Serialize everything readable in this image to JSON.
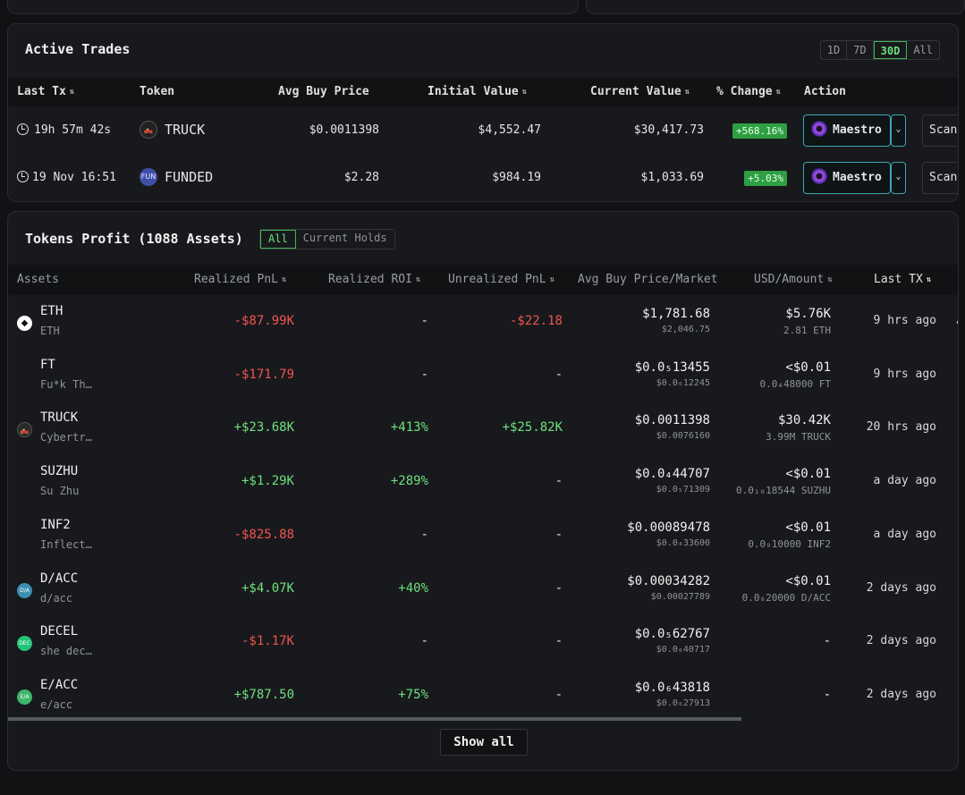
{
  "active_trades": {
    "title": "Active Trades",
    "ranges": [
      "1D",
      "7D",
      "30D",
      "All"
    ],
    "active_range": "30D",
    "columns": [
      "Last Tx",
      "Token",
      "Avg Buy Price",
      "Initial Value",
      "Current Value",
      "% Change",
      "Action"
    ],
    "rows": [
      {
        "last_tx": "19h 57m 42s",
        "token": "TRUCK",
        "avg_buy_price": "$0.0011398",
        "initial_value": "$4,552.47",
        "current_value": "$30,417.73",
        "change": "+568.16%",
        "action": "Maestro",
        "scan": "Scan"
      },
      {
        "last_tx": "19 Nov 16:51",
        "token": "FUNDED",
        "token_icon_text": "FUN",
        "avg_buy_price": "$2.28",
        "initial_value": "$984.19",
        "current_value": "$1,033.69",
        "change": "+5.03%",
        "action": "Maestro",
        "scan": "Scan"
      }
    ]
  },
  "tokens_profit": {
    "title": "Tokens Profit (1088 Assets)",
    "filters": [
      "All",
      "Current Holds"
    ],
    "active_filter": "All",
    "columns": [
      "Assets",
      "Realized PnL",
      "Realized ROI",
      "Unrealized PnL",
      "Avg Buy Price/Market",
      "USD/Amount",
      "Last TX"
    ],
    "rows": [
      {
        "symbol": "ETH",
        "name": "ETH",
        "icon_color": "#ffffff",
        "realized_pnl": "-$87.99K",
        "realized_roi": "-",
        "unrealized_pnl": "-$22.18",
        "avg_buy": "$1,781.68",
        "market": "$2,046.75",
        "usd": "$5.76K",
        "amount": "2.81 ETH",
        "last_tx": "9 hrs ago"
      },
      {
        "symbol": "FT",
        "name": "Fu*k Th…",
        "icon_color": "",
        "realized_pnl": "-$171.79",
        "realized_roi": "-",
        "unrealized_pnl": "-",
        "avg_buy": "$0.0₅13455",
        "market": "$0.0₆12245",
        "usd": "<$0.01",
        "amount": "0.0₄48000 FT",
        "last_tx": "9 hrs ago"
      },
      {
        "symbol": "TRUCK",
        "name": "Cybertr…",
        "icon_color": "#2a2a2a",
        "realized_pnl": "+$23.68K",
        "realized_roi": "+413%",
        "unrealized_pnl": "+$25.82K",
        "avg_buy": "$0.0011398",
        "market": "$0.0076160",
        "usd": "$30.42K",
        "amount": "3.99M TRUCK",
        "last_tx": "20 hrs ago"
      },
      {
        "symbol": "SUZHU",
        "name": "Su Zhu",
        "icon_color": "",
        "realized_pnl": "+$1.29K",
        "realized_roi": "+289%",
        "unrealized_pnl": "-",
        "avg_buy": "$0.0₄44707",
        "market": "$0.0₅71309",
        "usd": "<$0.01",
        "amount": "0.0₁₀18544 SUZHU",
        "last_tx": "a day ago"
      },
      {
        "symbol": "INF2",
        "name": "Inflect…",
        "icon_color": "",
        "realized_pnl": "-$825.88",
        "realized_roi": "-",
        "unrealized_pnl": "-",
        "avg_buy": "$0.00089478",
        "market": "$0.0₄33600",
        "usd": "<$0.01",
        "amount": "0.0₉10000 INF2",
        "last_tx": "a day ago"
      },
      {
        "symbol": "D/ACC",
        "name": "d/acc",
        "icon_color": "#3b8fb0",
        "icon_text": "D/A",
        "realized_pnl": "+$4.07K",
        "realized_roi": "+40%",
        "unrealized_pnl": "-",
        "avg_buy": "$0.00034282",
        "market": "$0.00027789",
        "usd": "<$0.01",
        "amount": "0.0₆20000 D/ACC",
        "last_tx": "2 days ago"
      },
      {
        "symbol": "DECEL",
        "name": "she dec…",
        "icon_color": "#22c47a",
        "icon_text": "DEC",
        "realized_pnl": "-$1.17K",
        "realized_roi": "-",
        "unrealized_pnl": "-",
        "avg_buy": "$0.0₅62767",
        "market": "$0.0₆40717",
        "usd": "-",
        "amount": "",
        "last_tx": "2 days ago"
      },
      {
        "symbol": "E/ACC",
        "name": "e/acc",
        "icon_color": "#3fb56a",
        "icon_text": "E/A",
        "realized_pnl": "+$787.50",
        "realized_roi": "+75%",
        "unrealized_pnl": "-",
        "avg_buy": "$0.0₆43818",
        "market": "$0.0₆27913",
        "usd": "-",
        "amount": "",
        "last_tx": "2 days ago"
      }
    ],
    "overflow_char": "4",
    "show_all_label": "Show all"
  },
  "colors": {
    "positive": "#6ee07e",
    "negative": "#f0544f",
    "accent_teal": "#3da7b3"
  }
}
